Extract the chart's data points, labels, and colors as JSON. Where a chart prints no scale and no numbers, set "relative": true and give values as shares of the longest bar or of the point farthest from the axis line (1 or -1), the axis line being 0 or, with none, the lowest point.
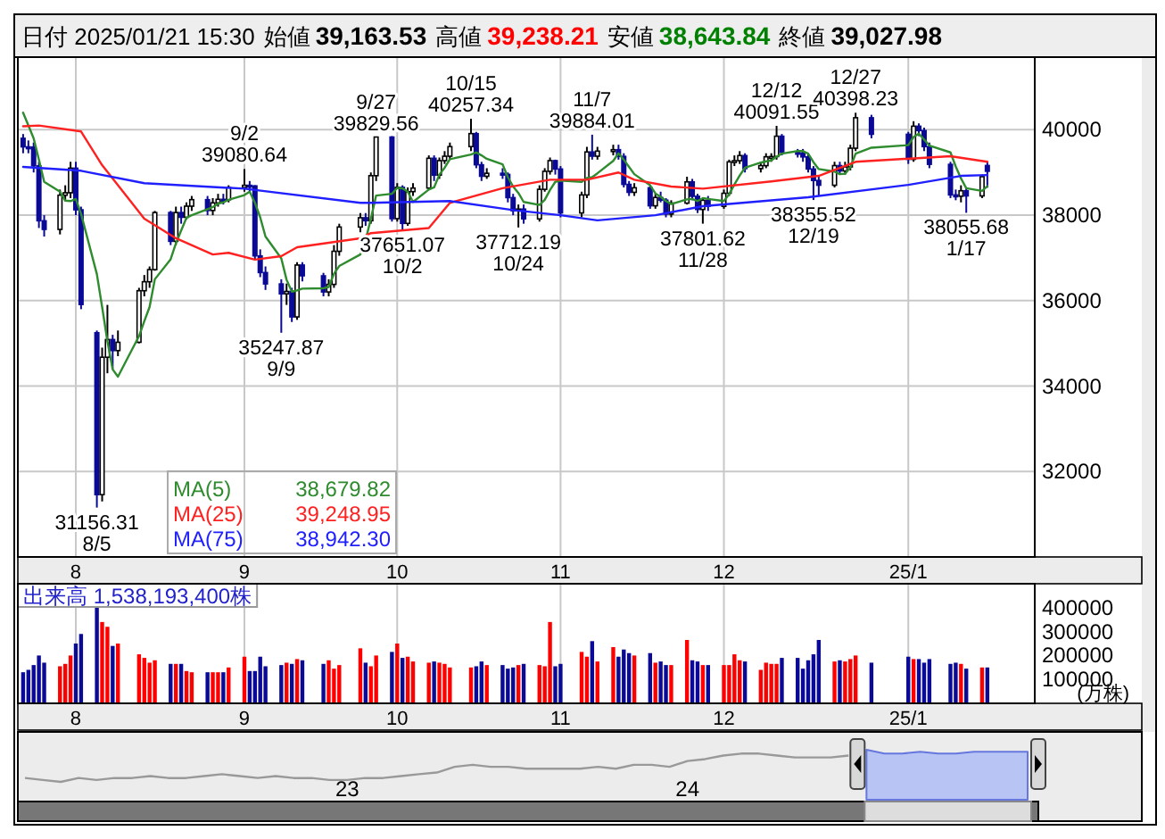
{
  "chart_data": [
    {
      "type": "candlestick",
      "title": "日付 2025/01/21 15:30",
      "x": [
        "2024-07-22",
        "2024-07-23",
        "2024-07-24",
        "2024-07-25",
        "2024-07-26",
        "2024-07-29",
        "2024-07-30",
        "2024-07-31",
        "2024-08-01",
        "2024-08-02",
        "2024-08-05",
        "2024-08-06",
        "2024-08-07",
        "2024-08-08",
        "2024-08-09",
        "2024-08-13",
        "2024-08-14",
        "2024-08-15",
        "2024-08-16",
        "2024-08-19",
        "2024-08-20",
        "2024-08-21",
        "2024-08-22",
        "2024-08-23",
        "2024-08-26",
        "2024-08-27",
        "2024-08-28",
        "2024-08-29",
        "2024-08-30",
        "2024-09-02",
        "2024-09-03",
        "2024-09-04",
        "2024-09-05",
        "2024-09-06",
        "2024-09-09",
        "2024-09-10",
        "2024-09-11",
        "2024-09-12",
        "2024-09-13",
        "2024-09-17",
        "2024-09-18",
        "2024-09-19",
        "2024-09-20",
        "2024-09-24",
        "2024-09-25",
        "2024-09-26",
        "2024-09-27",
        "2024-09-30",
        "2024-10-01",
        "2024-10-02",
        "2024-10-03",
        "2024-10-04",
        "2024-10-07",
        "2024-10-08",
        "2024-10-09",
        "2024-10-10",
        "2024-10-11",
        "2024-10-15",
        "2024-10-16",
        "2024-10-17",
        "2024-10-18",
        "2024-10-21",
        "2024-10-22",
        "2024-10-23",
        "2024-10-24",
        "2024-10-25",
        "2024-10-28",
        "2024-10-29",
        "2024-10-30",
        "2024-10-31",
        "2024-11-01",
        "2024-11-05",
        "2024-11-06",
        "2024-11-07",
        "2024-11-08",
        "2024-11-11",
        "2024-11-12",
        "2024-11-13",
        "2024-11-14",
        "2024-11-15",
        "2024-11-18",
        "2024-11-19",
        "2024-11-20",
        "2024-11-21",
        "2024-11-22",
        "2024-11-25",
        "2024-11-26",
        "2024-11-27",
        "2024-11-28",
        "2024-11-29",
        "2024-12-02",
        "2024-12-03",
        "2024-12-04",
        "2024-12-05",
        "2024-12-06",
        "2024-12-09",
        "2024-12-10",
        "2024-12-11",
        "2024-12-12",
        "2024-12-13",
        "2024-12-16",
        "2024-12-17",
        "2024-12-18",
        "2024-12-19",
        "2024-12-20",
        "2024-12-23",
        "2024-12-24",
        "2024-12-25",
        "2024-12-26",
        "2024-12-27",
        "2024-12-30",
        "2025-01-06",
        "2025-01-07",
        "2025-01-08",
        "2025-01-09",
        "2025-01-10",
        "2025-01-14",
        "2025-01-15",
        "2025-01-16",
        "2025-01-17",
        "2025-01-20",
        "2025-01-21"
      ],
      "ohlc": [
        [
          39800,
          39900,
          39450,
          39599
        ],
        [
          39599,
          39750,
          39450,
          39594
        ],
        [
          39594,
          39700,
          39000,
          39154
        ],
        [
          39154,
          39250,
          37700,
          37869
        ],
        [
          37869,
          38000,
          37500,
          37667
        ],
        [
          37667,
          38600,
          37550,
          38468
        ],
        [
          38468,
          38700,
          38350,
          38525
        ],
        [
          38525,
          39250,
          38400,
          39101
        ],
        [
          39101,
          39250,
          38000,
          38126
        ],
        [
          38126,
          38200,
          35800,
          35909
        ],
        [
          35249,
          35300,
          31156.31,
          31458
        ],
        [
          31458,
          34900,
          31300,
          34675
        ],
        [
          34675,
          35900,
          34300,
          35089
        ],
        [
          35089,
          35200,
          34400,
          34831
        ],
        [
          34831,
          35300,
          34700,
          35025
        ],
        [
          35025,
          36300,
          35000,
          36232
        ],
        [
          36232,
          36600,
          36100,
          36442
        ],
        [
          36442,
          36800,
          36300,
          36726
        ],
        [
          36726,
          38100,
          36700,
          38062
        ],
        [
          38062,
          38100,
          37300,
          37388
        ],
        [
          37388,
          38200,
          37300,
          38062
        ],
        [
          38062,
          38200,
          37800,
          37951
        ],
        [
          37951,
          38300,
          37900,
          38211
        ],
        [
          38211,
          38450,
          38100,
          38364
        ],
        [
          38364,
          38450,
          38000,
          38110
        ],
        [
          38110,
          38400,
          38000,
          38288
        ],
        [
          38288,
          38500,
          38200,
          38371
        ],
        [
          38371,
          38500,
          38250,
          38362
        ],
        [
          38362,
          38700,
          38300,
          38647
        ],
        [
          38647,
          39080.64,
          38550,
          38700
        ],
        [
          38700,
          38800,
          38550,
          38686
        ],
        [
          38686,
          38700,
          36950,
          37047
        ],
        [
          37047,
          37200,
          36550,
          36657
        ],
        [
          36657,
          36800,
          36250,
          36391
        ],
        [
          36391,
          36500,
          35247.87,
          36159
        ],
        [
          36159,
          36400,
          35900,
          36215
        ],
        [
          36215,
          36300,
          35500,
          35619
        ],
        [
          35619,
          36900,
          35550,
          36833
        ],
        [
          36833,
          36900,
          36450,
          36581
        ],
        [
          36581,
          36650,
          36100,
          36203
        ],
        [
          36203,
          36500,
          36100,
          36380
        ],
        [
          36380,
          37300,
          36300,
          37155
        ],
        [
          37155,
          37800,
          37050,
          37723
        ],
        [
          37723,
          38050,
          37600,
          37940
        ],
        [
          37940,
          38050,
          37750,
          37870
        ],
        [
          37870,
          39000,
          37800,
          38925
        ],
        [
          38925,
          39829.56,
          38800,
          39829.56
        ],
        [
          39829.56,
          39850,
          37850,
          37919
        ],
        [
          37919,
          38750,
          37850,
          38651
        ],
        [
          38651,
          38700,
          37651.07,
          37808
        ],
        [
          37808,
          38650,
          37750,
          38552
        ],
        [
          38552,
          38750,
          38450,
          38635
        ],
        [
          38635,
          39400,
          38600,
          39332
        ],
        [
          39332,
          39400,
          38800,
          38937
        ],
        [
          38937,
          39350,
          38850,
          39277
        ],
        [
          39277,
          39500,
          39200,
          39380
        ],
        [
          39380,
          39700,
          39300,
          39605
        ],
        [
          39605,
          40257.34,
          39500,
          39910
        ],
        [
          39910,
          39950,
          39100,
          39180
        ],
        [
          39180,
          39250,
          38800,
          38911
        ],
        [
          38911,
          39100,
          38850,
          38981
        ],
        [
          38981,
          39100,
          38850,
          38954
        ],
        [
          38954,
          39000,
          38300,
          38411
        ],
        [
          38411,
          38500,
          38000,
          38104
        ],
        [
          38104,
          38250,
          37712.19,
          38143
        ],
        [
          38143,
          38250,
          37800,
          37913
        ],
        [
          37913,
          38700,
          37850,
          38605
        ],
        [
          38605,
          39100,
          38550,
          39027
        ],
        [
          39027,
          39350,
          38950,
          39277
        ],
        [
          39277,
          39300,
          38950,
          39081
        ],
        [
          39081,
          39150,
          37950,
          38053
        ],
        [
          38053,
          38550,
          37950,
          38474
        ],
        [
          38474,
          39600,
          38400,
          39480
        ],
        [
          39480,
          39884.01,
          39300,
          39381
        ],
        [
          39381,
          39600,
          39300,
          39500
        ],
        [
          39500,
          39650,
          39400,
          39533
        ],
        [
          39533,
          39650,
          39300,
          39376
        ],
        [
          39376,
          39450,
          38650,
          38721
        ],
        [
          38721,
          38800,
          38450,
          38535
        ],
        [
          38535,
          38750,
          38450,
          38642
        ],
        [
          38642,
          38700,
          38150,
          38220
        ],
        [
          38220,
          38500,
          38150,
          38414
        ],
        [
          38414,
          38550,
          38300,
          38352
        ],
        [
          38352,
          38400,
          37950,
          38026
        ],
        [
          38026,
          38350,
          37950,
          38283
        ],
        [
          38283,
          38900,
          38250,
          38780
        ],
        [
          38780,
          38850,
          38350,
          38442
        ],
        [
          38442,
          38500,
          38050,
          38134
        ],
        [
          38134,
          38400,
          37801.62,
          38349
        ],
        [
          38349,
          38450,
          38100,
          38208
        ],
        [
          38208,
          38600,
          38150,
          38513
        ],
        [
          38513,
          39300,
          38450,
          39248
        ],
        [
          39248,
          39400,
          39150,
          39276
        ],
        [
          39276,
          39500,
          39200,
          39395
        ],
        [
          39395,
          39450,
          39000,
          39091
        ],
        [
          39091,
          39250,
          39000,
          39160
        ],
        [
          39160,
          39450,
          39100,
          39367
        ],
        [
          39367,
          39450,
          39250,
          39372
        ],
        [
          39372,
          40091.55,
          39300,
          39849
        ],
        [
          39849,
          39900,
          39400,
          39470
        ],
        [
          39470,
          39550,
          39350,
          39457
        ],
        [
          39457,
          39550,
          39250,
          39364
        ],
        [
          39364,
          39450,
          39000,
          39081
        ],
        [
          39081,
          39150,
          38355.52,
          38813
        ],
        [
          38813,
          38900,
          38450,
          38701
        ],
        [
          38701,
          39250,
          38650,
          39161
        ],
        [
          39161,
          39250,
          38950,
          39036
        ],
        [
          39036,
          39250,
          38950,
          39130
        ],
        [
          39130,
          39650,
          39050,
          39568
        ],
        [
          39568,
          40398.23,
          39500,
          40281
        ],
        [
          40281,
          40350,
          39800,
          39894
        ],
        [
          39894,
          39950,
          39200,
          39307
        ],
        [
          39307,
          40200,
          39250,
          40083
        ],
        [
          40083,
          40150,
          39850,
          39981
        ],
        [
          39981,
          40050,
          39500,
          39605
        ],
        [
          39605,
          39700,
          39100,
          39190
        ],
        [
          39190,
          39250,
          38400,
          38474
        ],
        [
          38474,
          38600,
          38350,
          38444
        ],
        [
          38444,
          38700,
          38300,
          38572
        ],
        [
          38572,
          38650,
          38055.68,
          38451
        ],
        [
          38451,
          38950,
          38400,
          38902
        ],
        [
          39163.53,
          39238.21,
          38643.84,
          39027.98
        ]
      ],
      "colors": [
        "#0a0a96",
        "#0a0a96",
        "#0a0a96",
        "#0a0a96",
        "#0a0a96",
        "#ffffff",
        "#ffffff",
        "#ffffff",
        "#0a0a96",
        "#0a0a96",
        "#0a0a96",
        "#ffffff",
        "#ffffff",
        "#0a0a96",
        "#ffffff",
        "#ffffff",
        "#ffffff",
        "#ffffff",
        "#ffffff",
        "#0a0a96",
        "#ffffff",
        "#0a0a96",
        "#ffffff",
        "#ffffff",
        "#0a0a96",
        "#ffffff",
        "#ffffff",
        "#0a0a96",
        "#ffffff",
        "#ffffff",
        "#0a0a96",
        "#0a0a96",
        "#0a0a96",
        "#0a0a96",
        "#0a0a96",
        "#ffffff",
        "#0a0a96",
        "#ffffff",
        "#0a0a96",
        "#0a0a96",
        "#ffffff",
        "#ffffff",
        "#ffffff",
        "#ffffff",
        "#0a0a96",
        "#ffffff",
        "#ffffff",
        "#0a0a96",
        "#ffffff",
        "#0a0a96",
        "#ffffff",
        "#ffffff",
        "#ffffff",
        "#0a0a96",
        "#ffffff",
        "#ffffff",
        "#ffffff",
        "#ffffff",
        "#0a0a96",
        "#0a0a96",
        "#ffffff",
        "#0a0a96",
        "#0a0a96",
        "#0a0a96",
        "#ffffff",
        "#0a0a96",
        "#ffffff",
        "#ffffff",
        "#ffffff",
        "#0a0a96",
        "#0a0a96",
        "#ffffff",
        "#ffffff",
        "#0a0a96",
        "#ffffff",
        "#ffffff",
        "#0a0a96",
        "#0a0a96",
        "#0a0a96",
        "#ffffff",
        "#0a0a96",
        "#ffffff",
        "#0a0a96",
        "#0a0a96",
        "#ffffff",
        "#ffffff",
        "#0a0a96",
        "#0a0a96",
        "#ffffff",
        "#0a0a96",
        "#ffffff",
        "#ffffff",
        "#ffffff",
        "#ffffff",
        "#0a0a96",
        "#ffffff",
        "#ffffff",
        "#ffffff",
        "#ffffff",
        "#0a0a96",
        "#0a0a96",
        "#0a0a96",
        "#0a0a96",
        "#0a0a96",
        "#0a0a96",
        "#ffffff",
        "#0a0a96",
        "#ffffff",
        "#ffffff",
        "#ffffff",
        "#0a0a96",
        "#0a0a96",
        "#ffffff",
        "#0a0a96",
        "#0a0a96",
        "#0a0a96",
        "#0a0a96",
        "#0a0a96",
        "#ffffff",
        "#0a0a96",
        "#ffffff",
        "#0a0a96"
      ],
      "series": [
        {
          "name": "MA(5)  38,679.82",
          "type": "line",
          "color": "#2e8b2e",
          "values": [
            40400,
            40100,
            39800,
            39300,
            38780,
            38550,
            38340,
            38330,
            38380,
            38030,
            36620,
            35850,
            35050,
            34390,
            34220,
            35170,
            35520,
            35850,
            36500,
            36970,
            37340,
            37640,
            37940,
            38000,
            38140,
            38190,
            38270,
            38300,
            38360,
            38470,
            38550,
            38290,
            37950,
            37500,
            36990,
            36490,
            36210,
            36240,
            36280,
            36290,
            36320,
            36630,
            36810,
            37080,
            37410,
            37920,
            38460,
            38500,
            38640,
            38630,
            38550,
            38310,
            38600,
            38650,
            38950,
            39110,
            39310,
            39420,
            39470,
            39400,
            39320,
            39190,
            38890,
            38670,
            38520,
            38310,
            38240,
            38360,
            38590,
            38780,
            38810,
            38780,
            38870,
            38890,
            38980,
            39270,
            39450,
            39300,
            39130,
            38960,
            38700,
            38510,
            38430,
            38330,
            38260,
            38370,
            38380,
            38330,
            38400,
            38380,
            38330,
            38490,
            38720,
            38930,
            39110,
            39230,
            39260,
            39280,
            39370,
            39440,
            39500,
            39500,
            39440,
            39240,
            39080,
            39020,
            38960,
            38970,
            39120,
            39440,
            39580,
            39640,
            39830,
            39910,
            39770,
            39630,
            39470,
            39140,
            38860,
            38630,
            38570,
            38680
          ]
        },
        {
          "name": "MA(25)  39,248.95",
          "type": "line",
          "color": "#ff2020",
          "x": [
            "2024-07-22",
            "2024-07-25",
            "2024-08-02",
            "2024-08-06",
            "2024-08-14",
            "2024-08-20",
            "2024-08-27",
            "2024-08-30",
            "2024-09-04",
            "2024-09-09",
            "2024-09-12",
            "2024-09-24",
            "2024-09-26",
            "2024-10-07",
            "2024-10-11",
            "2024-10-21",
            "2024-10-30",
            "2024-11-06",
            "2024-11-12",
            "2024-11-15",
            "2024-11-22",
            "2024-11-28",
            "2024-12-11",
            "2024-12-20",
            "2024-12-27",
            "2025-01-14",
            "2025-01-21"
          ],
          "values": [
            40080,
            40100,
            39960,
            39170,
            37920,
            37460,
            37080,
            37120,
            36960,
            37040,
            37250,
            37460,
            37580,
            37700,
            38290,
            38630,
            38830,
            38830,
            39000,
            38830,
            38670,
            38620,
            38790,
            38920,
            39250,
            39380,
            39250
          ]
        },
        {
          "name": "MA(75)  38,942.30",
          "type": "line",
          "color": "#2020ff",
          "x": [
            "2024-07-22",
            "2024-08-02",
            "2024-08-14",
            "2024-09-02",
            "2024-09-24",
            "2024-09-26",
            "2024-10-11",
            "2024-10-23",
            "2024-11-01",
            "2024-11-08",
            "2024-11-19",
            "2024-11-28",
            "2024-12-18",
            "2025-01-06",
            "2025-01-16",
            "2025-01-21"
          ],
          "values": [
            39130,
            39040,
            38750,
            38620,
            38290,
            38290,
            38330,
            38120,
            38000,
            37880,
            38000,
            38210,
            38420,
            38710,
            38920,
            38940
          ]
        }
      ],
      "xlim": [
        "2024-07-21",
        "2025-01-30"
      ],
      "xticks": [
        {
          "value": "2024-08-01",
          "label": "8"
        },
        {
          "value": "2024-09-02",
          "label": "9"
        },
        {
          "value": "2024-10-01",
          "label": "10"
        },
        {
          "value": "2024-11-01",
          "label": "11"
        },
        {
          "value": "2024-12-02",
          "label": "12"
        },
        {
          "value": "2025-01-06",
          "label": "25/1"
        }
      ],
      "ylim": [
        30000,
        41700
      ],
      "yticks": [
        32000,
        34000,
        36000,
        38000,
        40000
      ],
      "grid": true,
      "annotations": [
        "始値 39,163.53",
        "高値 39,238.21",
        "安値 38,643.84",
        "終値 39,027.98",
        {
          "text": "31156.31\n8/5",
          "x": "2024-08-05",
          "y": 31156.31
        },
        {
          "text": "9/2\n39080.64",
          "x": "2024-09-02",
          "y": 39080.64
        },
        {
          "text": "35247.87\n9/9",
          "x": "2024-09-09",
          "y": 35247.87
        },
        {
          "text": "9/27\n39829.56",
          "x": "2024-09-27",
          "y": 39829.56
        },
        {
          "text": "37651.07\n10/2",
          "x": "2024-10-02",
          "y": 37651.07
        },
        {
          "text": "10/15\n40257.34",
          "x": "2024-10-15",
          "y": 40257.34
        },
        {
          "text": "37712.19\n10/24",
          "x": "2024-10-24",
          "y": 37712.19
        },
        {
          "text": "11/7\n39884.01",
          "x": "2024-11-07",
          "y": 39884.01
        },
        {
          "text": "37801.62\n11/28",
          "x": "2024-11-28",
          "y": 37801.62
        },
        {
          "text": "12/12\n40091.55",
          "x": "2024-12-12",
          "y": 40091.55
        },
        {
          "text": "38355.52\n12/19",
          "x": "2024-12-19",
          "y": 38355.52
        },
        {
          "text": "12/27\n40398.23",
          "x": "2024-12-27",
          "y": 40398.23
        },
        {
          "text": "38055.68\n1/17",
          "x": "2025-01-17",
          "y": 38055.68
        }
      ]
    },
    {
      "type": "bar",
      "title": "出来高  1,538,193,400株",
      "ylabel": "(万株)",
      "x": [
        "2024-07-22",
        "2024-07-23",
        "2024-07-24",
        "2024-07-25",
        "2024-07-26",
        "2024-07-29",
        "2024-07-30",
        "2024-07-31",
        "2024-08-01",
        "2024-08-02",
        "2024-08-05",
        "2024-08-06",
        "2024-08-07",
        "2024-08-08",
        "2024-08-09",
        "2024-08-13",
        "2024-08-14",
        "2024-08-15",
        "2024-08-16",
        "2024-08-19",
        "2024-08-20",
        "2024-08-21",
        "2024-08-22",
        "2024-08-23",
        "2024-08-26",
        "2024-08-27",
        "2024-08-28",
        "2024-08-29",
        "2024-08-30",
        "2024-09-02",
        "2024-09-03",
        "2024-09-04",
        "2024-09-05",
        "2024-09-06",
        "2024-09-09",
        "2024-09-10",
        "2024-09-11",
        "2024-09-12",
        "2024-09-13",
        "2024-09-17",
        "2024-09-18",
        "2024-09-19",
        "2024-09-20",
        "2024-09-24",
        "2024-09-25",
        "2024-09-26",
        "2024-09-27",
        "2024-09-30",
        "2024-10-01",
        "2024-10-02",
        "2024-10-03",
        "2024-10-04",
        "2024-10-07",
        "2024-10-08",
        "2024-10-09",
        "2024-10-10",
        "2024-10-11",
        "2024-10-15",
        "2024-10-16",
        "2024-10-17",
        "2024-10-18",
        "2024-10-21",
        "2024-10-22",
        "2024-10-23",
        "2024-10-24",
        "2024-10-25",
        "2024-10-28",
        "2024-10-29",
        "2024-10-30",
        "2024-10-31",
        "2024-11-01",
        "2024-11-05",
        "2024-11-06",
        "2024-11-07",
        "2024-11-08",
        "2024-11-11",
        "2024-11-12",
        "2024-11-13",
        "2024-11-14",
        "2024-11-15",
        "2024-11-18",
        "2024-11-19",
        "2024-11-20",
        "2024-11-21",
        "2024-11-22",
        "2024-11-25",
        "2024-11-26",
        "2024-11-27",
        "2024-11-28",
        "2024-11-29",
        "2024-12-02",
        "2024-12-03",
        "2024-12-04",
        "2024-12-05",
        "2024-12-06",
        "2024-12-09",
        "2024-12-10",
        "2024-12-11",
        "2024-12-12",
        "2024-12-13",
        "2024-12-16",
        "2024-12-17",
        "2024-12-18",
        "2024-12-19",
        "2024-12-20",
        "2024-12-23",
        "2024-12-24",
        "2024-12-25",
        "2024-12-26",
        "2024-12-27",
        "2024-12-30",
        "2025-01-06",
        "2025-01-07",
        "2025-01-08",
        "2025-01-09",
        "2025-01-10",
        "2025-01-14",
        "2025-01-15",
        "2025-01-16",
        "2025-01-17",
        "2025-01-20",
        "2025-01-21"
      ],
      "values": [
        130000,
        140000,
        160000,
        200000,
        170000,
        155000,
        165000,
        200000,
        250000,
        290000,
        405000,
        340000,
        320000,
        240000,
        250000,
        205000,
        190000,
        170000,
        180000,
        165000,
        165000,
        165000,
        135000,
        130000,
        130000,
        130000,
        130000,
        130000,
        150000,
        195000,
        135000,
        135000,
        195000,
        155000,
        160000,
        170000,
        165000,
        185000,
        180000,
        165000,
        180000,
        145000,
        160000,
        230000,
        170000,
        155000,
        200000,
        215000,
        250000,
        190000,
        195000,
        175000,
        170000,
        175000,
        170000,
        165000,
        150000,
        150000,
        155000,
        175000,
        160000,
        160000,
        145000,
        150000,
        160000,
        165000,
        160000,
        155000,
        340000,
        155000,
        165000,
        215000,
        195000,
        260000,
        175000,
        235000,
        195000,
        225000,
        210000,
        200000,
        210000,
        170000,
        175000,
        160000,
        160000,
        265000,
        180000,
        175000,
        160000,
        160000,
        160000,
        160000,
        205000,
        180000,
        175000,
        140000,
        170000,
        165000,
        165000,
        190000,
        190000,
        145000,
        180000,
        205000,
        265000,
        175000,
        180000,
        175000,
        185000,
        200000,
        170000,
        195000,
        185000,
        185000,
        170000,
        185000,
        165000,
        170000,
        165000,
        145000,
        150000,
        150000
      ],
      "colors": [
        "#0a0a96",
        "#0a0a96",
        "#0a0a96",
        "#0a0a96",
        "#0a0a96",
        "#ff0000",
        "#ff0000",
        "#ff0000",
        "#0a0a96",
        "#0a0a96",
        "#0a0a96",
        "#ff0000",
        "#ff0000",
        "#0a0a96",
        "#ff0000",
        "#ff0000",
        "#ff0000",
        "#ff0000",
        "#ff0000",
        "#0a0a96",
        "#ff0000",
        "#0a0a96",
        "#ff0000",
        "#ff0000",
        "#0a0a96",
        "#ff0000",
        "#ff0000",
        "#0a0a96",
        "#ff0000",
        "#ff0000",
        "#0a0a96",
        "#0a0a96",
        "#0a0a96",
        "#0a0a96",
        "#0a0a96",
        "#ff0000",
        "#0a0a96",
        "#ff0000",
        "#0a0a96",
        "#0a0a96",
        "#ff0000",
        "#ff0000",
        "#ff0000",
        "#ff0000",
        "#0a0a96",
        "#ff0000",
        "#ff0000",
        "#0a0a96",
        "#ff0000",
        "#0a0a96",
        "#ff0000",
        "#ff0000",
        "#ff0000",
        "#0a0a96",
        "#ff0000",
        "#ff0000",
        "#ff0000",
        "#ff0000",
        "#0a0a96",
        "#0a0a96",
        "#ff0000",
        "#0a0a96",
        "#0a0a96",
        "#0a0a96",
        "#ff0000",
        "#0a0a96",
        "#ff0000",
        "#ff0000",
        "#ff0000",
        "#0a0a96",
        "#0a0a96",
        "#ff0000",
        "#ff0000",
        "#0a0a96",
        "#ff0000",
        "#ff0000",
        "#0a0a96",
        "#0a0a96",
        "#0a0a96",
        "#ff0000",
        "#0a0a96",
        "#ff0000",
        "#0a0a96",
        "#0a0a96",
        "#ff0000",
        "#ff0000",
        "#0a0a96",
        "#0a0a96",
        "#ff0000",
        "#0a0a96",
        "#ff0000",
        "#ff0000",
        "#ff0000",
        "#ff0000",
        "#0a0a96",
        "#ff0000",
        "#ff0000",
        "#ff0000",
        "#ff0000",
        "#0a0a96",
        "#0a0a96",
        "#0a0a96",
        "#0a0a96",
        "#0a0a96",
        "#0a0a96",
        "#ff0000",
        "#0a0a96",
        "#ff0000",
        "#ff0000",
        "#ff0000",
        "#0a0a96",
        "#0a0a96",
        "#ff0000",
        "#0a0a96",
        "#0a0a96",
        "#0a0a96",
        "#0a0a96",
        "#0a0a96",
        "#ff0000",
        "#0a0a96",
        "#ff0000",
        "#0a0a96"
      ],
      "xlim": [
        "2024-07-21",
        "2025-01-30"
      ],
      "xticks": [
        {
          "value": "2024-08-01",
          "label": "8"
        },
        {
          "value": "2024-09-02",
          "label": "9"
        },
        {
          "value": "2024-10-01",
          "label": "10"
        },
        {
          "value": "2024-11-01",
          "label": "11"
        },
        {
          "value": "2024-12-02",
          "label": "12"
        },
        {
          "value": "2025-01-06",
          "label": "25/1"
        }
      ],
      "ylim": [
        0,
        500000
      ],
      "yticks": [
        100000,
        200000,
        300000,
        400000
      ],
      "grid": "x"
    },
    {
      "type": "line",
      "relative": true,
      "categories": [
        null,
        null,
        null,
        null,
        null,
        null,
        null,
        null,
        null,
        null,
        null,
        null,
        null,
        null,
        null,
        null,
        null,
        null,
        "23",
        null,
        null,
        null,
        null,
        null,
        null,
        null,
        null,
        null,
        null,
        null,
        null,
        null,
        null,
        null,
        null,
        null,
        null,
        "24",
        null,
        null,
        null,
        null,
        null,
        null,
        null,
        null,
        null,
        null,
        null,
        null,
        null,
        null,
        null,
        null,
        null,
        null,
        null
      ],
      "series": [
        {
          "type": "line",
          "color": "#999999",
          "values": [
            0.12,
            0.06,
            0,
            0.12,
            0.06,
            0.12,
            0.12,
            0.18,
            0.12,
            0.12,
            0.18,
            0.24,
            0.18,
            0.12,
            0.18,
            0.12,
            0.12,
            0.06,
            0.06,
            0.12,
            0.12,
            0.18,
            0.24,
            0.29,
            0.47,
            0.53,
            0.47,
            0.47,
            0.41,
            0.41,
            0.41,
            0.41,
            0.47,
            0.41,
            0.53,
            0.53,
            0.47,
            0.65,
            0.71,
            0.82,
            0.88,
            0.88,
            0.82,
            0.76,
            0.76,
            0.76,
            0.82,
            null,
            null,
            null,
            null,
            null,
            null,
            null,
            null,
            null,
            null
          ]
        },
        {
          "type": "area",
          "color": "#6677dd",
          "values": [
            null,
            null,
            null,
            null,
            null,
            null,
            null,
            null,
            null,
            null,
            null,
            null,
            null,
            null,
            null,
            null,
            null,
            null,
            null,
            null,
            null,
            null,
            null,
            null,
            null,
            null,
            null,
            null,
            null,
            null,
            null,
            null,
            null,
            null,
            null,
            null,
            null,
            null,
            null,
            null,
            null,
            null,
            null,
            null,
            null,
            null,
            null,
            1,
            0.88,
            0.88,
            0.94,
            0.88,
            0.88,
            0.94,
            0.94,
            0.94,
            0.94
          ]
        }
      ]
    }
  ]
}
